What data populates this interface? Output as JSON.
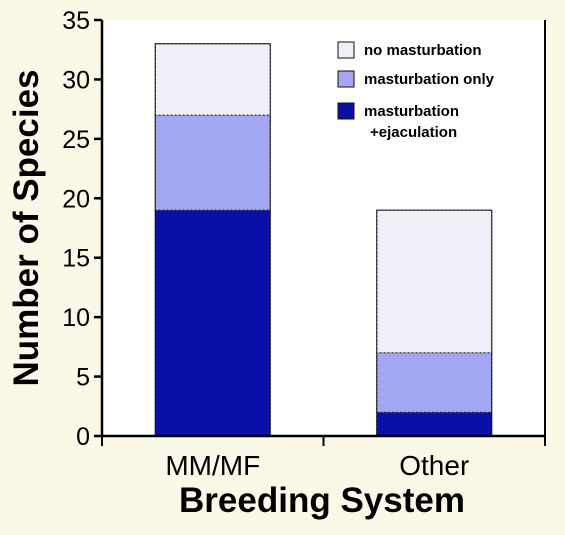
{
  "chart_data": {
    "type": "bar",
    "stacked": true,
    "categories": [
      "MM/MF",
      "Other"
    ],
    "series": [
      {
        "name": "masturbation\n+ejaculation",
        "values": [
          19,
          2
        ],
        "color": "#0a0fa8"
      },
      {
        "name": "masturbation only",
        "values": [
          8,
          5
        ],
        "color": "#a3a6f2"
      },
      {
        "name": "no masturbation",
        "values": [
          6,
          12
        ],
        "color": "#efeff8"
      }
    ],
    "xlabel": "Breeding System",
    "ylabel": "Number of Species",
    "ylim": [
      0,
      35
    ],
    "yticks": [
      0,
      5,
      10,
      15,
      20,
      25,
      30,
      35
    ],
    "grid": false,
    "legend_position": "top-right",
    "colors": {
      "background": "#fcf8e7",
      "axis": "#000000",
      "bar_outline": "#222222"
    }
  }
}
